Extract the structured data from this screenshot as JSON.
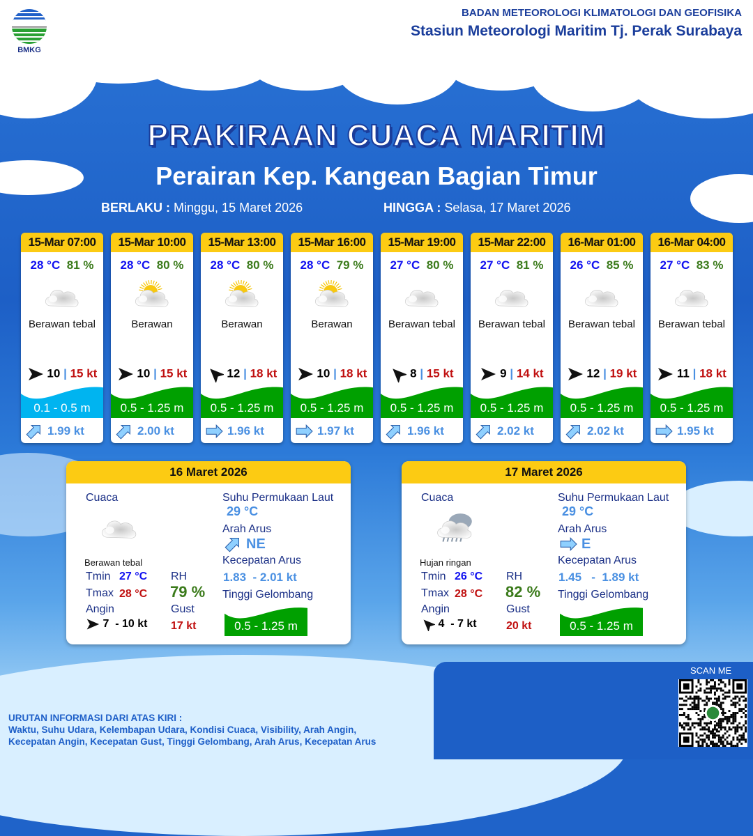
{
  "header": {
    "agency": "BADAN METEOROLOGI KLIMATOLOGI DAN GEOFISIKA",
    "station": "Stasiun Meteorologi Maritim Tj. Perak Surabaya",
    "logo_text": "BMKG"
  },
  "title": "PRAKIRAAN CUACA MARITIM",
  "subtitle": "Perairan Kep. Kangean Bagian Timur",
  "validity": {
    "from_label": "BERLAKU :",
    "from": "Minggu, 15 Maret 2026",
    "to_label": "HINGGA :",
    "to": "Selasa, 17 Maret 2026"
  },
  "colors": {
    "header_yellow": "#fccb13",
    "temp": "#1010f0",
    "rh": "#3a7a1a",
    "gust": "#c01010",
    "wave_low": "#00b4f0",
    "wave_mid": "#00a000",
    "current": "#4a90e2"
  },
  "forecasts": [
    {
      "time": "15-Mar 07:00",
      "temp": "28 °C",
      "rh": "81 %",
      "icon": "cloudy-icon",
      "condition": "Berawan tebal",
      "wind_dir": "E",
      "wind": "10",
      "gust": "15 kt",
      "wave": "0.1 - 0.5 m",
      "wave_color": "#00b4f0",
      "current_dir": "NE",
      "current": "1.99 kt"
    },
    {
      "time": "15-Mar 10:00",
      "temp": "28 °C",
      "rh": "80 %",
      "icon": "partly-cloudy-icon",
      "condition": "Berawan",
      "wind_dir": "E",
      "wind": "10",
      "gust": "15 kt",
      "wave": "0.5 - 1.25 m",
      "wave_color": "#00a000",
      "current_dir": "NE",
      "current": "2.00 kt"
    },
    {
      "time": "15-Mar 13:00",
      "temp": "28 °C",
      "rh": "80 %",
      "icon": "partly-cloudy-icon",
      "condition": "Berawan",
      "wind_dir": "NW",
      "wind": "12",
      "gust": "18 kt",
      "wave": "0.5 - 1.25 m",
      "wave_color": "#00a000",
      "current_dir": "E",
      "current": "1.96 kt"
    },
    {
      "time": "15-Mar 16:00",
      "temp": "28 °C",
      "rh": "79 %",
      "icon": "partly-cloudy-icon",
      "condition": "Berawan",
      "wind_dir": "E",
      "wind": "10",
      "gust": "18 kt",
      "wave": "0.5 - 1.25 m",
      "wave_color": "#00a000",
      "current_dir": "E",
      "current": "1.97 kt"
    },
    {
      "time": "15-Mar 19:00",
      "temp": "27 °C",
      "rh": "80 %",
      "icon": "cloudy-icon",
      "condition": "Berawan tebal",
      "wind_dir": "NW",
      "wind": "8",
      "gust": "15 kt",
      "wave": "0.5 - 1.25 m",
      "wave_color": "#00a000",
      "current_dir": "NE",
      "current": "1.96 kt"
    },
    {
      "time": "15-Mar 22:00",
      "temp": "27 °C",
      "rh": "81 %",
      "icon": "cloudy-icon",
      "condition": "Berawan tebal",
      "wind_dir": "E",
      "wind": "9",
      "gust": "14 kt",
      "wave": "0.5 - 1.25 m",
      "wave_color": "#00a000",
      "current_dir": "NE",
      "current": "2.02 kt"
    },
    {
      "time": "16-Mar 01:00",
      "temp": "26 °C",
      "rh": "85 %",
      "icon": "cloudy-icon",
      "condition": "Berawan tebal",
      "wind_dir": "E",
      "wind": "12",
      "gust": "19 kt",
      "wave": "0.5 - 1.25 m",
      "wave_color": "#00a000",
      "current_dir": "NE",
      "current": "2.02 kt"
    },
    {
      "time": "16-Mar 04:00",
      "temp": "27 °C",
      "rh": "83 %",
      "icon": "cloudy-icon",
      "condition": "Berawan tebal",
      "wind_dir": "E",
      "wind": "11",
      "gust": "18 kt",
      "wave": "0.5 - 1.25 m",
      "wave_color": "#00a000",
      "current_dir": "E",
      "current": "1.95 kt"
    }
  ],
  "labels": {
    "weather": "Cuaca",
    "sst": "Suhu Permukaan Laut",
    "current_dir": "Arah Arus",
    "current_speed": "Kecepatan Arus",
    "wave": "Tinggi Gelombang",
    "tmin": "Tmin",
    "tmax": "Tmax",
    "rh": "RH",
    "wind": "Angin",
    "gust": "Gust"
  },
  "daily": [
    {
      "date": "16 Maret 2026",
      "icon": "cloudy-icon",
      "condition": "Berawan tebal",
      "tmin": "27 °C",
      "tmax": "28 °C",
      "rh": "79 %",
      "wind_dir": "E",
      "wind": "7  - 10 kt",
      "gust": "17 kt",
      "sst": "29 °C",
      "current_dir": "NE",
      "current_speed": "1.83  - 2.01 kt",
      "wave": "0.5 - 1.25 m"
    },
    {
      "date": "17 Maret 2026",
      "icon": "light-rain-icon",
      "condition": "Hujan ringan",
      "tmin": "26 °C",
      "tmax": "28 °C",
      "rh": "82 %",
      "wind_dir": "NW",
      "wind": "4  - 7 kt",
      "gust": "20 kt",
      "sst": "29 °C",
      "current_dir": "E",
      "current_speed": "1.45   -  1.89 kt",
      "wave": "0.5 - 1.25 m"
    }
  ],
  "footer": {
    "legend_title": "URUTAN INFORMASI DARI ATAS KIRI :",
    "legend_line1": "Waktu, Suhu Udara, Kelembapan Udara, Kondisi Cuaca, Visibility, Arah Angin,",
    "legend_line2": "Kecepatan Angin, Kecepatan Gust, Tinggi Gelombang, Arah Arus, Kecepatan Arus",
    "scan": "SCAN ME"
  }
}
